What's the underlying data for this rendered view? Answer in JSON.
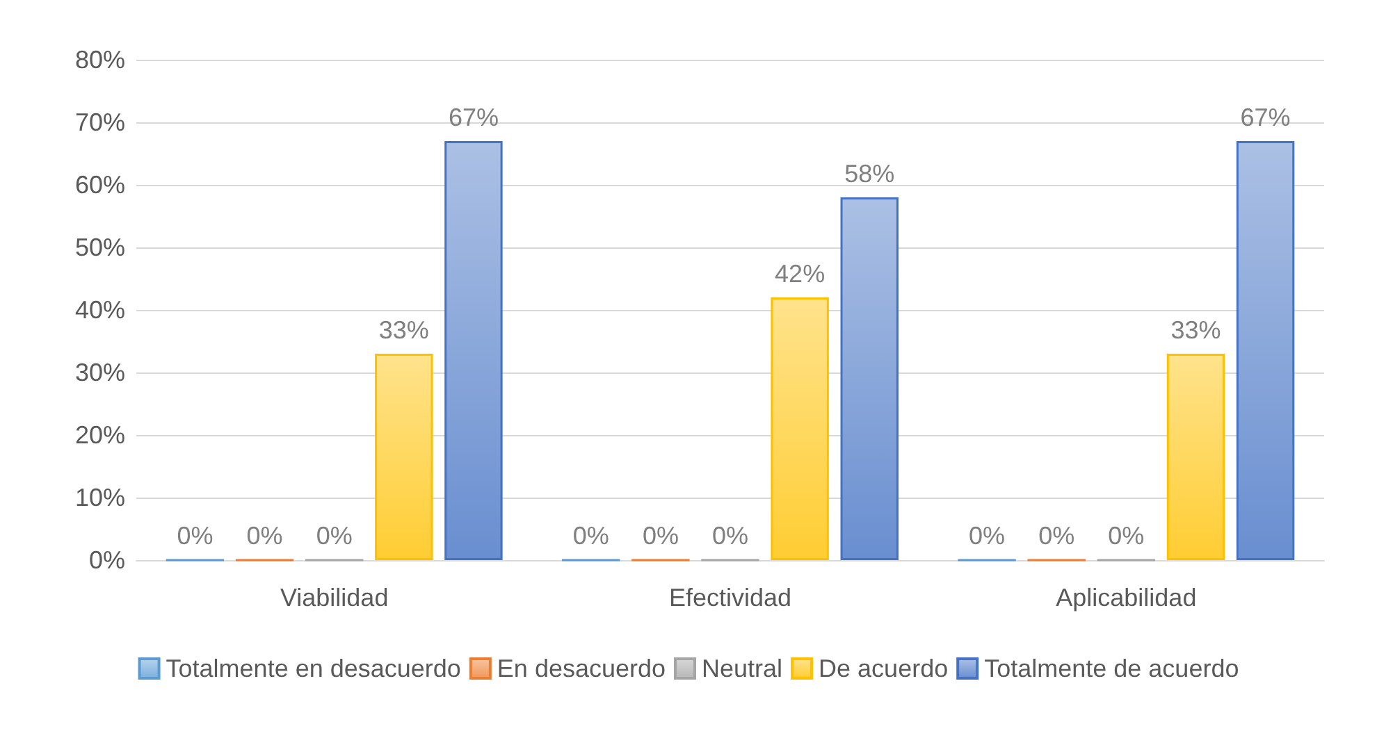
{
  "chart_data": {
    "type": "bar",
    "categories": [
      "Viabilidad",
      "Efectividad",
      "Aplicabilidad"
    ],
    "series": [
      {
        "name": "Totalmente en desacuerdo",
        "color": "#5b9bd5",
        "values": [
          0,
          0,
          0
        ],
        "value_labels": [
          "0%",
          "0%",
          "0%"
        ]
      },
      {
        "name": "En desacuerdo",
        "color": "#ed7d31",
        "values": [
          0,
          0,
          0
        ],
        "value_labels": [
          "0%",
          "0%",
          "0%"
        ]
      },
      {
        "name": "Neutral",
        "color": "#a5a5a5",
        "values": [
          0,
          0,
          0
        ],
        "value_labels": [
          "0%",
          "0%",
          "0%"
        ]
      },
      {
        "name": "De acuerdo",
        "color": "#ffc000",
        "values": [
          33,
          42,
          33
        ],
        "value_labels": [
          "33%",
          "42%",
          "33%"
        ]
      },
      {
        "name": "Totalmente de acuerdo",
        "color": "#4472c4",
        "values": [
          67,
          58,
          67
        ],
        "value_labels": [
          "67%",
          "58%",
          "67%"
        ]
      }
    ],
    "ylim": [
      0,
      80
    ],
    "yticks": [
      {
        "value": 0,
        "label": "0%"
      },
      {
        "value": 10,
        "label": "10%"
      },
      {
        "value": 20,
        "label": "20%"
      },
      {
        "value": 30,
        "label": "30%"
      },
      {
        "value": 40,
        "label": "40%"
      },
      {
        "value": 50,
        "label": "50%"
      },
      {
        "value": 60,
        "label": "60%"
      },
      {
        "value": 70,
        "label": "70%"
      },
      {
        "value": 80,
        "label": "80%"
      }
    ],
    "grid": "y",
    "legend": "bottom"
  }
}
